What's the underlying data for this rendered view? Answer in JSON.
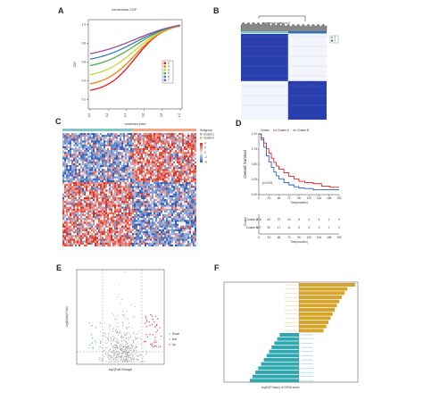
{
  "figure": {
    "panel_labels": [
      "A",
      "B",
      "C",
      "D",
      "E",
      "F"
    ]
  },
  "panel_a": {
    "title": "consensus CDF",
    "xlabel": "consensus index",
    "ylabel": "CDF",
    "legend": [
      "2",
      "3",
      "4",
      "5",
      "6",
      "7"
    ],
    "x_ticks": [
      "0.0",
      "0.2",
      "0.4",
      "0.6",
      "0.8",
      "1.0"
    ],
    "y_ticks": [
      "0.2",
      "0.4",
      "0.6",
      "0.8",
      "1.0"
    ],
    "colors": [
      "#e41a1c",
      "#ff7f00",
      "#c8d63c",
      "#4daf4a",
      "#377eb8",
      "#984ea3"
    ]
  },
  "panel_b": {
    "title": "consensus matrix k=2",
    "legend": [
      "1",
      "2"
    ],
    "colors": {
      "block": "#2a3fae",
      "light": "#ffffff",
      "bar1": "#7ec8c8",
      "bar2": "#2f6fb3"
    }
  },
  "panel_c": {
    "legend_title": "Subgroup",
    "legend_items": [
      "Cluster1",
      "Cluster2"
    ],
    "scale_labels": [
      "4",
      "2",
      "0",
      "-2",
      "-4"
    ],
    "colors": {
      "high": "#d7301f",
      "low": "#2b5bb5",
      "mid": "#f0f0f0",
      "bar1": "#7ec8c8",
      "bar2": "#f4a582"
    }
  },
  "panel_d": {
    "legend_title": "Cluster",
    "legend_items": [
      "Cluster A",
      "Cluster B"
    ],
    "p_text": "p<0.001",
    "ylabel": "Overall Survival",
    "xlabel": "Time(months)",
    "y_ticks": [
      "1.00",
      "0.75",
      "0.50",
      "0.25",
      "0.00"
    ],
    "x_ticks": [
      "0",
      "24",
      "48",
      "72",
      "96",
      "120",
      "144",
      "168",
      "192"
    ],
    "risk_ylabel": "Cluster",
    "risk_rows": [
      {
        "label": "Cluster A",
        "values": [
          "218",
          "82",
          "37",
          "14",
          "8",
          "4",
          "4",
          "1",
          "0"
        ]
      },
      {
        "label": "Cluster B",
        "values": [
          "127",
          "50",
          "17",
          "11",
          "5",
          "4",
          "2",
          "1",
          "0"
        ]
      }
    ],
    "colors": {
      "a": "#e41a1c",
      "b": "#2f5dbd"
    },
    "curves": {
      "a": [
        [
          0,
          1.0
        ],
        [
          6,
          0.93
        ],
        [
          12,
          0.85
        ],
        [
          18,
          0.76
        ],
        [
          24,
          0.68
        ],
        [
          30,
          0.6
        ],
        [
          36,
          0.53
        ],
        [
          42,
          0.47
        ],
        [
          48,
          0.42
        ],
        [
          60,
          0.36
        ],
        [
          72,
          0.3
        ],
        [
          84,
          0.26
        ],
        [
          96,
          0.22
        ],
        [
          110,
          0.2
        ],
        [
          130,
          0.18
        ],
        [
          150,
          0.14
        ],
        [
          170,
          0.12
        ],
        [
          192,
          0.12
        ]
      ],
      "b": [
        [
          0,
          1.0
        ],
        [
          6,
          0.9
        ],
        [
          12,
          0.78
        ],
        [
          18,
          0.64
        ],
        [
          24,
          0.54
        ],
        [
          30,
          0.45
        ],
        [
          36,
          0.37
        ],
        [
          42,
          0.31
        ],
        [
          48,
          0.26
        ],
        [
          60,
          0.2
        ],
        [
          72,
          0.16
        ],
        [
          84,
          0.13
        ],
        [
          96,
          0.11
        ],
        [
          110,
          0.1
        ],
        [
          130,
          0.08
        ],
        [
          150,
          0.08
        ],
        [
          170,
          0.08
        ],
        [
          192,
          0.08
        ]
      ]
    }
  },
  "panel_e": {
    "xlabel": "log2(Fold Change)",
    "ylabel": "-log10(adj.P.Val)",
    "legend": [
      "Down",
      "Not",
      "Up"
    ],
    "colors": {
      "down": "#5fb7b2",
      "not": "#9a9a9a",
      "up": "#e34a4a"
    }
  },
  "panel_f": {
    "xlabel": "-log10(P.Value) of GSVA score",
    "chart_data": {
      "type": "bar",
      "orientation": "horizontal",
      "values": [
        16.0,
        13.8,
        13.0,
        12.2,
        11.5,
        10.8,
        10.2,
        9.6,
        9.0,
        8.4,
        7.8,
        7.0,
        -5.5,
        -6.2,
        -7.0,
        -7.8,
        -8.5,
        -9.2,
        -10.0,
        -10.8,
        -11.6,
        -12.4,
        -13.2,
        -14.0
      ],
      "colors": {
        "up": "#d4a52a",
        "down": "#2fa8b0"
      }
    }
  }
}
